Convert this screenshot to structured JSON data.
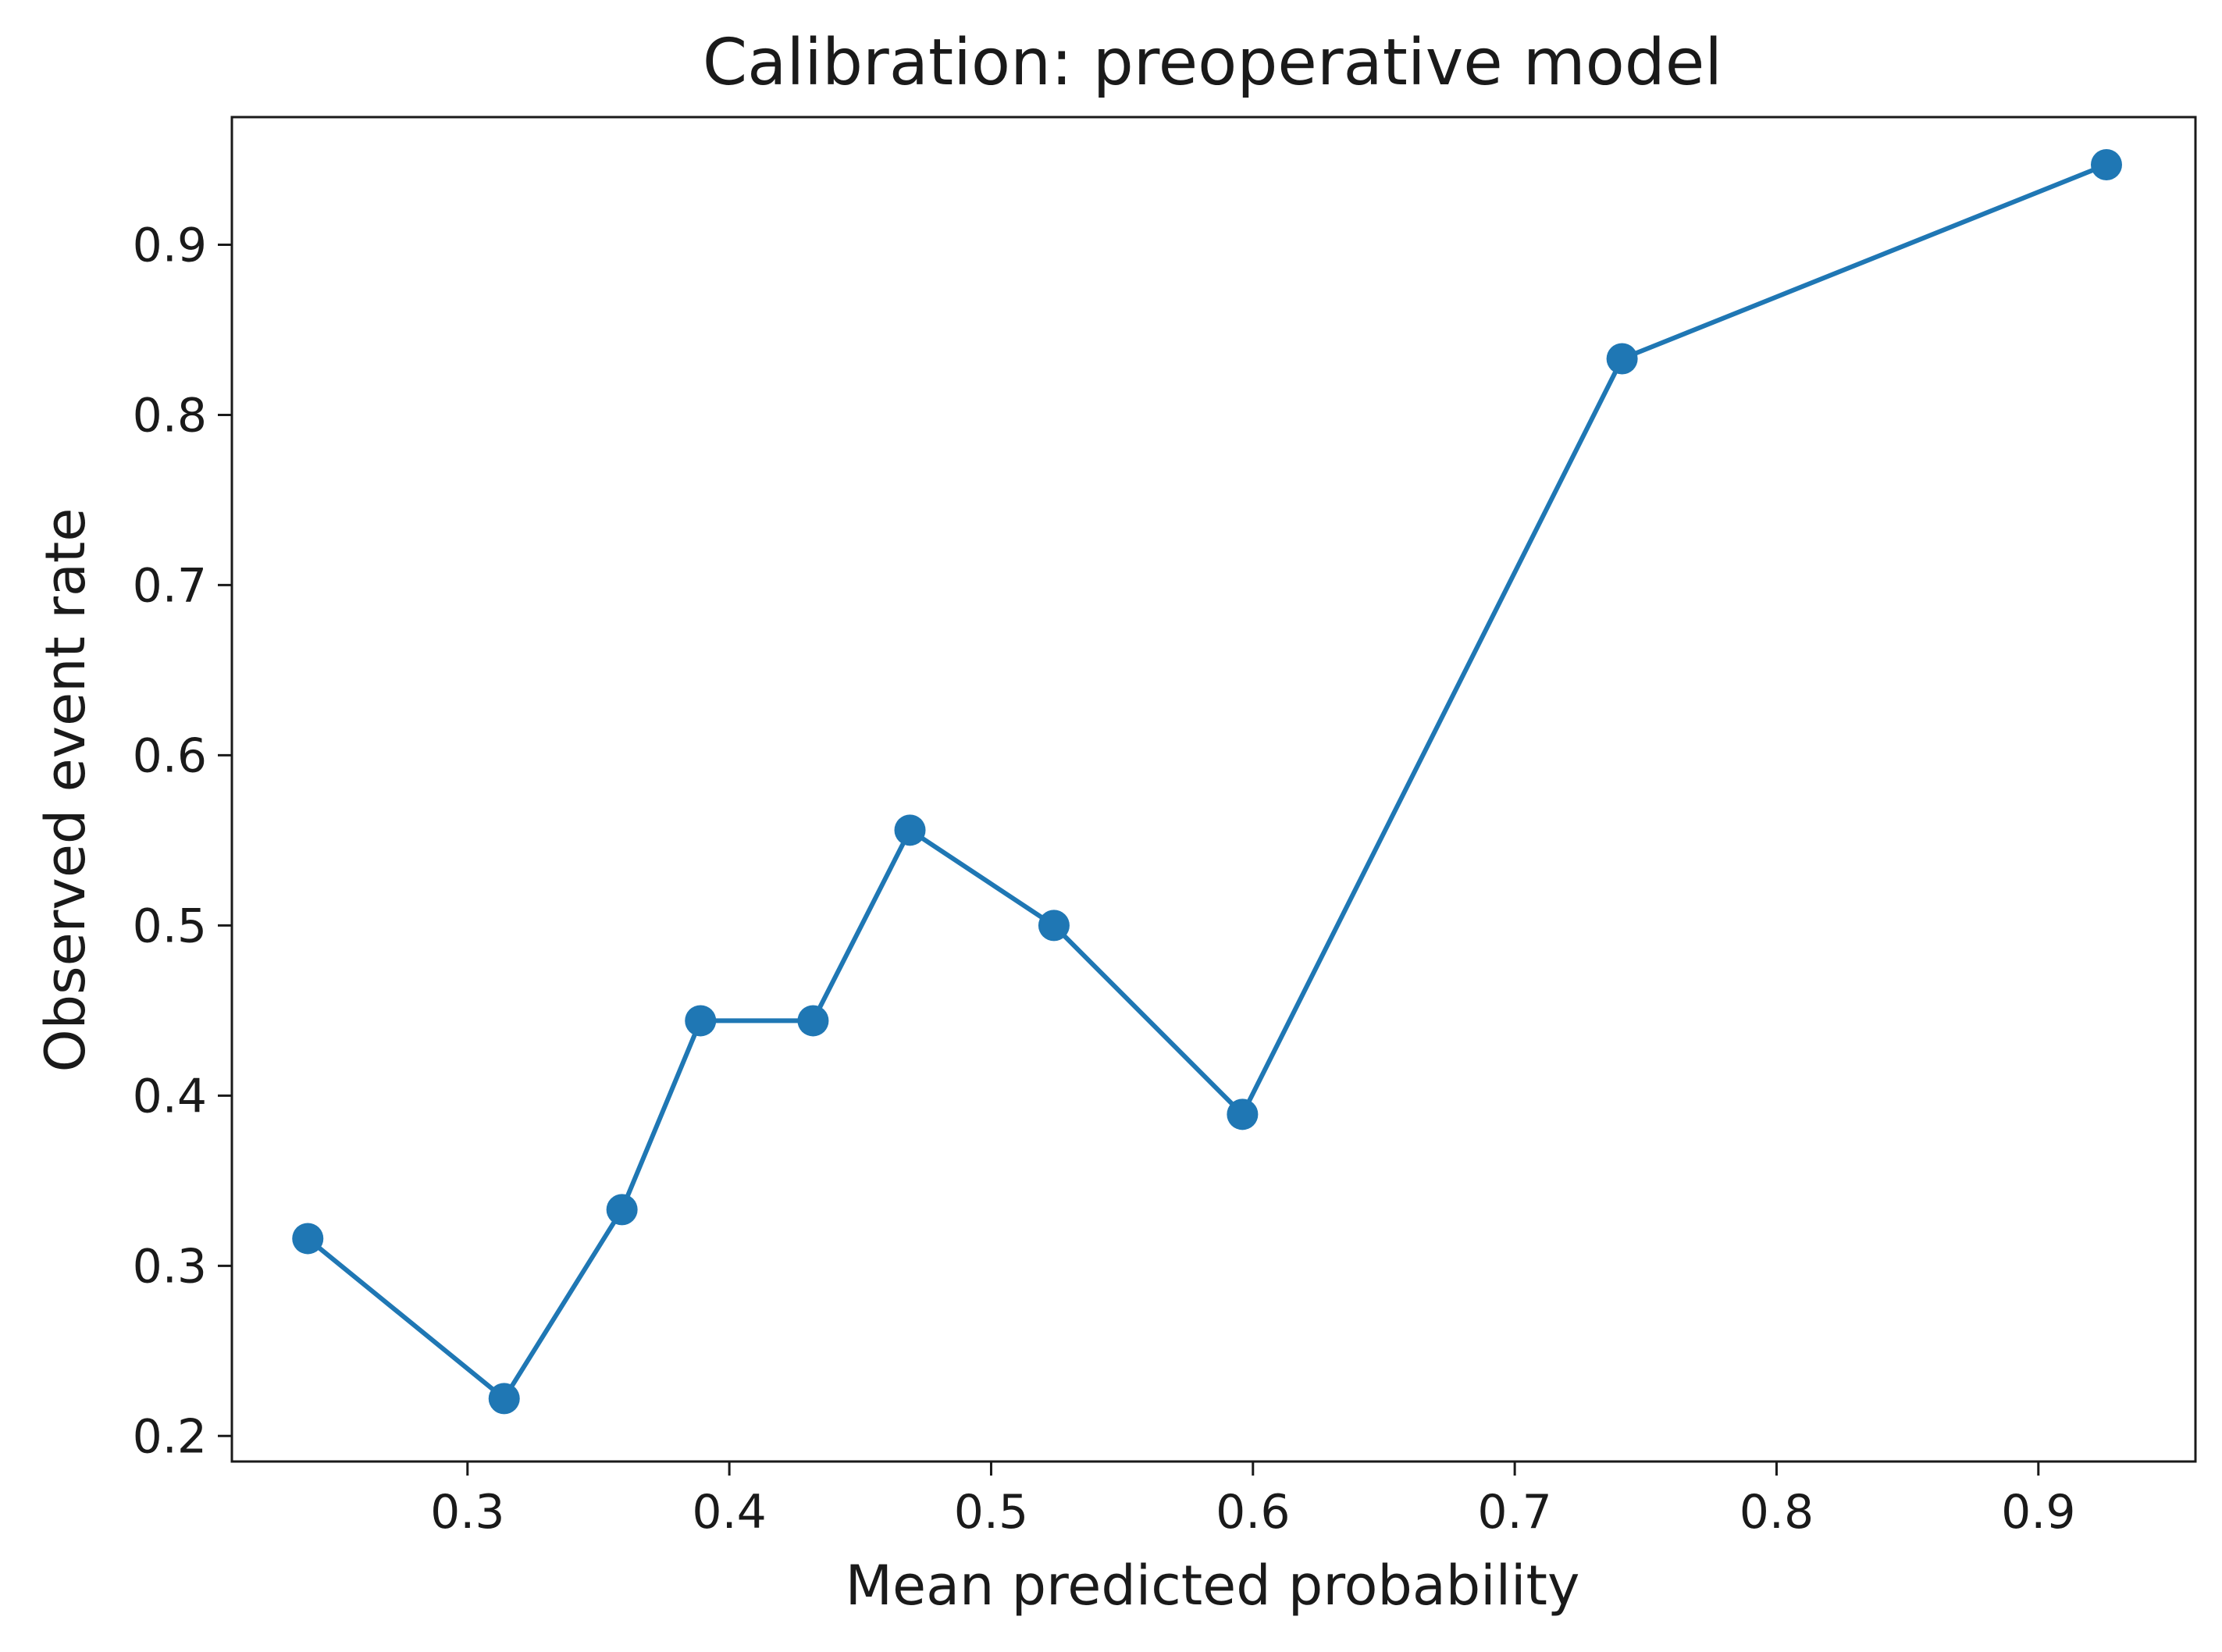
{
  "chart_data": {
    "type": "line",
    "title": "Calibration: preoperative model",
    "xlabel": "Mean predicted probability",
    "ylabel": "Observed event rate",
    "xlim": [
      0.21,
      0.96
    ],
    "ylim": [
      0.185,
      0.975
    ],
    "xticks": [
      0.3,
      0.4,
      0.5,
      0.6,
      0.7,
      0.8,
      0.9
    ],
    "xtick_labels": [
      "0.3",
      "0.4",
      "0.5",
      "0.6",
      "0.7",
      "0.8",
      "0.9"
    ],
    "yticks": [
      0.2,
      0.3,
      0.4,
      0.5,
      0.6,
      0.7,
      0.8,
      0.9
    ],
    "ytick_labels": [
      "0.2",
      "0.3",
      "0.4",
      "0.5",
      "0.6",
      "0.7",
      "0.8",
      "0.9"
    ],
    "grid": false,
    "legend": "none",
    "series": [
      {
        "name": "preoperative model",
        "color": "#1f77b4",
        "marker": "circle",
        "x": [
          0.239,
          0.314,
          0.359,
          0.389,
          0.432,
          0.469,
          0.524,
          0.596,
          0.741,
          0.926
        ],
        "y": [
          0.316,
          0.222,
          0.333,
          0.444,
          0.444,
          0.556,
          0.5,
          0.389,
          0.833,
          0.947
        ]
      }
    ]
  }
}
